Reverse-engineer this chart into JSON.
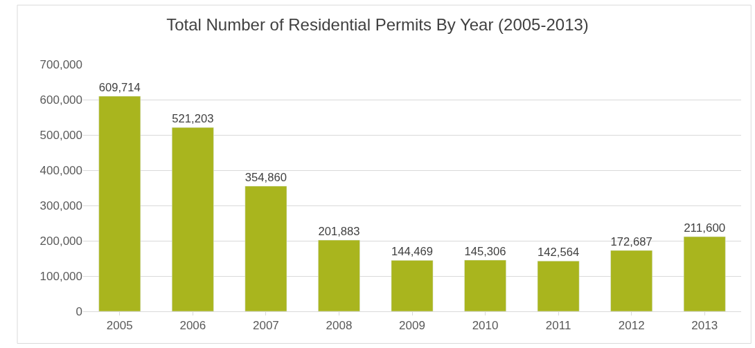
{
  "chart_data": {
    "type": "bar",
    "title": "Total Number of Residential Permits By Year (2005-2013)",
    "categories": [
      "2005",
      "2006",
      "2007",
      "2008",
      "2009",
      "2010",
      "2011",
      "2012",
      "2013"
    ],
    "values": [
      609714,
      521203,
      354860,
      201883,
      144469,
      145306,
      142564,
      172687,
      211600
    ],
    "value_labels": [
      "609,714",
      "521,203",
      "354,860",
      "201,883",
      "144,469",
      "145,306",
      "142,564",
      "172,687",
      "211,600"
    ],
    "color": "#a9b51e",
    "ylim": [
      0,
      700000
    ],
    "yticks": [
      0,
      {
        "value": 100000,
        "label": "100,000"
      },
      {
        "value": 200000,
        "label": "200,000"
      },
      {
        "value": 300000,
        "label": "300,000"
      },
      {
        "value": 400000,
        "label": "400,000"
      },
      {
        "value": 500000,
        "label": "500,000"
      },
      {
        "value": 600000,
        "label": "600,000"
      },
      {
        "value": 700000,
        "label": "700,000"
      }
    ],
    "grid": "y",
    "legend": false
  }
}
